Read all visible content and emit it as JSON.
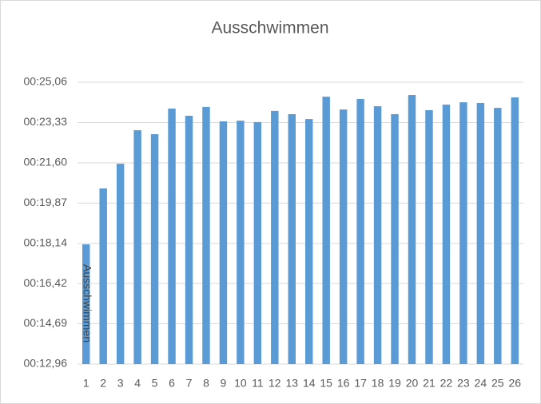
{
  "chart_data": {
    "type": "bar",
    "title": "Ausschwimmen",
    "y_label": "Ausschwimmen",
    "categories": [
      "1",
      "2",
      "3",
      "4",
      "5",
      "6",
      "7",
      "8",
      "9",
      "10",
      "11",
      "12",
      "13",
      "14",
      "15",
      "16",
      "17",
      "18",
      "19",
      "20",
      "21",
      "22",
      "23",
      "24",
      "25",
      "26"
    ],
    "values": [
      18.1,
      20.5,
      21.56,
      23.0,
      22.83,
      23.93,
      23.62,
      24.0,
      23.38,
      23.41,
      23.35,
      23.83,
      23.69,
      23.48,
      24.44,
      23.89,
      24.34,
      24.03,
      23.69,
      24.51,
      23.86,
      24.1,
      24.2,
      24.17,
      23.96,
      24.41
    ],
    "color": "#5b9bd5",
    "ylim": [
      12.96,
      25.06
    ],
    "yticks": [
      {
        "value": 12.96,
        "label": "00:12,96"
      },
      {
        "value": 14.69,
        "label": "00:14,69"
      },
      {
        "value": 16.42,
        "label": "00:16,42"
      },
      {
        "value": 18.14,
        "label": "00:18,14"
      },
      {
        "value": 19.87,
        "label": "00:19,87"
      },
      {
        "value": 21.6,
        "label": "00:21,60"
      },
      {
        "value": 23.33,
        "label": "00:23,33"
      },
      {
        "value": 25.06,
        "label": "00:25,06"
      }
    ],
    "grid": true
  }
}
